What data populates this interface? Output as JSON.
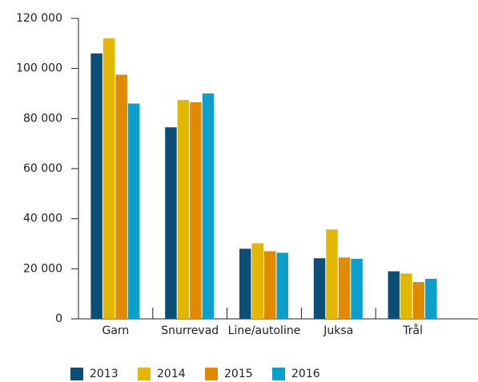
{
  "chart_data": {
    "type": "bar",
    "categories": [
      "Garn",
      "Snurrevad",
      "Line/autoline",
      "Juksa",
      "Trål"
    ],
    "series": [
      {
        "name": "2013",
        "color": "#0b4f78",
        "values": [
          106000,
          76500,
          28000,
          24200,
          19000
        ]
      },
      {
        "name": "2014",
        "color": "#e3b600",
        "values": [
          112000,
          87400,
          30200,
          35700,
          18100
        ]
      },
      {
        "name": "2015",
        "color": "#e08a00",
        "values": [
          97500,
          86500,
          27000,
          24500,
          14700
        ]
      },
      {
        "name": "2016",
        "color": "#0b9fcc",
        "values": [
          86000,
          90000,
          26400,
          24000,
          16000
        ]
      }
    ],
    "ylim": [
      0,
      120000
    ],
    "yticks": [
      0,
      {
        "value": 20000,
        "label": "20 000"
      },
      {
        "value": 40000,
        "label": "40 000"
      },
      {
        "value": 60000,
        "label": "60 000"
      },
      {
        "value": 80000,
        "label": "80 000"
      },
      {
        "value": 100000,
        "label": "100 000"
      },
      {
        "value": 120000,
        "label": "120 000"
      }
    ],
    "legend": "bottom"
  }
}
